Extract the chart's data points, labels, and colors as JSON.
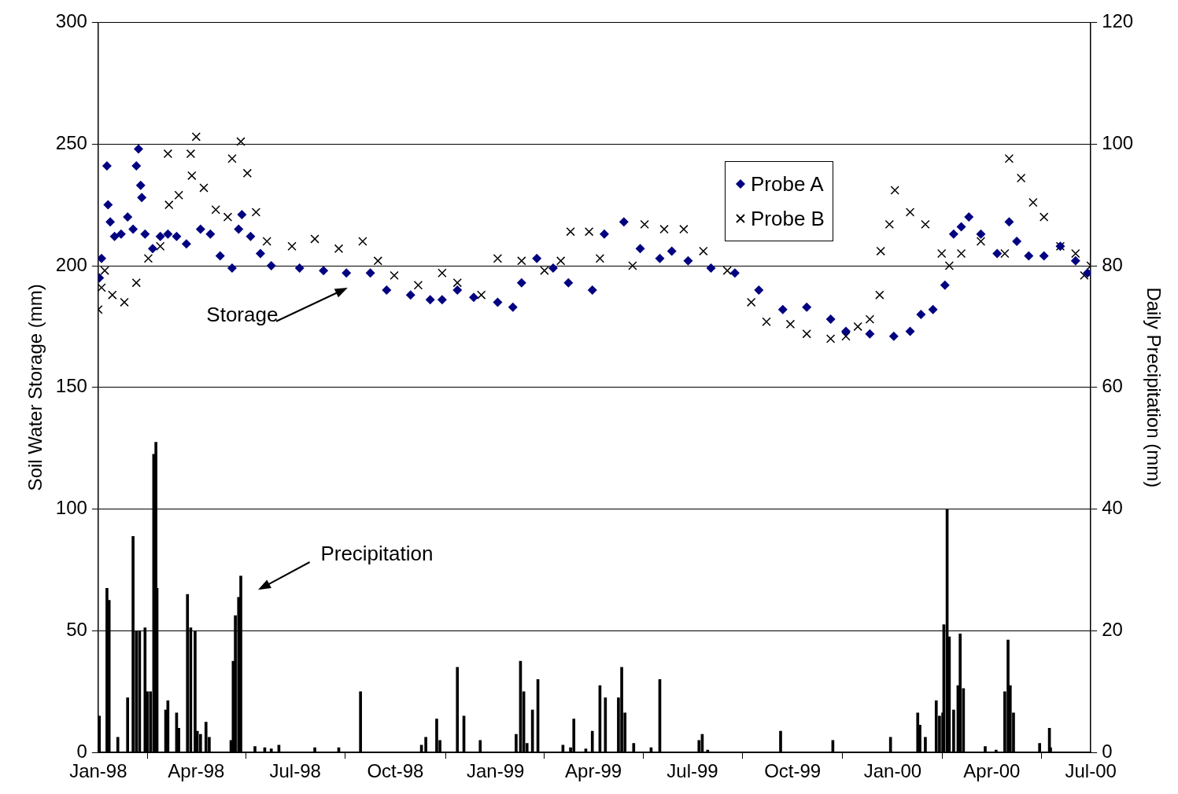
{
  "chart_data": {
    "type": "scatter",
    "xlabel": null,
    "ylabel": "Soil Water Storage (mm)",
    "y2label": "Daily Precipitation (mm)",
    "xlim": [
      "1998-01-01",
      "2000-07-01"
    ],
    "xticks": [
      {
        "value": "1998-01-01",
        "label": "Jan-98"
      },
      {
        "value": "1998-04-01",
        "label": "Apr-98"
      },
      {
        "value": "1998-07-01",
        "label": "Jul-98"
      },
      {
        "value": "1998-10-01",
        "label": "Oct-98"
      },
      {
        "value": "1999-01-01",
        "label": "Jan-99"
      },
      {
        "value": "1999-04-01",
        "label": "Apr-99"
      },
      {
        "value": "1999-07-01",
        "label": "Jul-99"
      },
      {
        "value": "1999-10-01",
        "label": "Oct-99"
      },
      {
        "value": "2000-01-01",
        "label": "Jan-00"
      },
      {
        "value": "2000-04-01",
        "label": "Apr-00"
      },
      {
        "value": "2000-07-01",
        "label": "Jul-00"
      }
    ],
    "ylim": [
      0,
      300
    ],
    "yticks": [
      0,
      50,
      100,
      150,
      200,
      250,
      300
    ],
    "y2lim": [
      0,
      120
    ],
    "y2ticks": [
      0,
      20,
      40,
      60,
      80,
      100,
      120
    ],
    "grid": "y",
    "legend": "top right",
    "annotations": [
      "Storage",
      "Precipitation"
    ],
    "series": [
      {
        "name": "Probe A",
        "marker": "diamond",
        "color": "#000080",
        "x": [
          "1998-01-02",
          "1998-01-04",
          "1998-01-09",
          "1998-01-10",
          "1998-01-12",
          "1998-01-16",
          "1998-01-22",
          "1998-01-28",
          "1998-02-02",
          "1998-02-05",
          "1998-02-07",
          "1998-02-09",
          "1998-02-10",
          "1998-02-13",
          "1998-02-20",
          "1998-02-27",
          "1998-03-06",
          "1998-03-14",
          "1998-03-23",
          "1998-04-05",
          "1998-04-14",
          "1998-04-23",
          "1998-05-04",
          "1998-05-10",
          "1998-05-13",
          "1998-05-21",
          "1998-05-30",
          "1998-06-09",
          "1998-07-05",
          "1998-07-27",
          "1998-08-17",
          "1998-09-08",
          "1998-09-23",
          "1998-10-15",
          "1998-11-02",
          "1998-11-13",
          "1998-11-27",
          "1998-12-12",
          "1999-01-03",
          "1999-01-17",
          "1999-01-25",
          "1999-02-08",
          "1999-02-23",
          "1999-03-09",
          "1999-03-31",
          "1999-04-11",
          "1999-04-29",
          "1999-05-14",
          "1999-06-01",
          "1999-06-12",
          "1999-06-27",
          "1999-07-18",
          "1999-08-09",
          "1999-08-31",
          "1999-09-22",
          "1999-10-14",
          "1999-11-05",
          "1999-11-19",
          "1999-12-11",
          "2000-01-02",
          "2000-01-17",
          "2000-01-27",
          "2000-02-07",
          "2000-02-18",
          "2000-02-26",
          "2000-03-04",
          "2000-03-11",
          "2000-03-22",
          "2000-04-06",
          "2000-04-17",
          "2000-04-24",
          "2000-05-05",
          "2000-05-19",
          "2000-06-03",
          "2000-06-17",
          "2000-06-28"
        ],
        "values": [
          195,
          203,
          241,
          225,
          218,
          212,
          213,
          220,
          215,
          241,
          248,
          233,
          228,
          213,
          207,
          212,
          213,
          212,
          209,
          215,
          213,
          204,
          199,
          215,
          221,
          212,
          205,
          200,
          199,
          198,
          197,
          197,
          190,
          188,
          186,
          186,
          190,
          187,
          185,
          183,
          193,
          203,
          199,
          193,
          190,
          213,
          218,
          207,
          203,
          206,
          202,
          199,
          197,
          190,
          182,
          183,
          178,
          173,
          172,
          171,
          173,
          180,
          182,
          192,
          213,
          216,
          220,
          213,
          205,
          218,
          210,
          204,
          204,
          208,
          202,
          197
        ]
      },
      {
        "name": "Probe B",
        "marker": "cross",
        "color": "#000000",
        "x": [
          "1998-01-01",
          "1998-01-04",
          "1998-01-07",
          "1998-01-14",
          "1998-01-25",
          "1998-02-05",
          "1998-02-16",
          "1998-02-27",
          "1998-03-06",
          "1998-03-07",
          "1998-03-16",
          "1998-03-27",
          "1998-03-28",
          "1998-04-01",
          "1998-04-08",
          "1998-04-19",
          "1998-04-30",
          "1998-05-04",
          "1998-05-12",
          "1998-05-18",
          "1998-05-26",
          "1998-06-05",
          "1998-06-28",
          "1998-07-19",
          "1998-08-10",
          "1998-09-01",
          "1998-09-15",
          "1998-09-30",
          "1998-10-22",
          "1998-11-13",
          "1998-11-27",
          "1998-12-19",
          "1999-01-03",
          "1999-01-25",
          "1999-02-15",
          "1999-03-02",
          "1999-03-11",
          "1999-03-28",
          "1999-04-07",
          "1999-05-07",
          "1999-05-18",
          "1999-06-05",
          "1999-06-23",
          "1999-07-11",
          "1999-08-02",
          "1999-08-24",
          "1999-09-07",
          "1999-09-29",
          "1999-10-14",
          "1999-11-05",
          "1999-11-19",
          "1999-11-30",
          "1999-12-11",
          "1999-12-20",
          "1999-12-21",
          "1999-12-29",
          "2000-01-03",
          "2000-01-17",
          "2000-01-31",
          "2000-02-15",
          "2000-02-22",
          "2000-03-04",
          "2000-03-22",
          "2000-04-13",
          "2000-04-17",
          "2000-04-28",
          "2000-05-09",
          "2000-05-19",
          "2000-06-03",
          "2000-06-17",
          "2000-06-25",
          "2000-07-01"
        ],
        "values": [
          182,
          191,
          198,
          188,
          185,
          193,
          203,
          208,
          246,
          225,
          229,
          246,
          237,
          253,
          232,
          223,
          220,
          244,
          251,
          238,
          222,
          210,
          208,
          211,
          207,
          210,
          202,
          196,
          192,
          197,
          193,
          188,
          203,
          202,
          198,
          202,
          214,
          214,
          203,
          200,
          217,
          215,
          215,
          206,
          198,
          185,
          177,
          176,
          172,
          170,
          171,
          175,
          178,
          188,
          206,
          217,
          231,
          222,
          217,
          205,
          200,
          205,
          210,
          205,
          244,
          236,
          226,
          220,
          208,
          205,
          196,
          200
        ]
      },
      {
        "type": "bar",
        "axis": "y2",
        "color": "#000000",
        "x": [
          "1998-01-02",
          "1998-01-09",
          "1998-01-11",
          "1998-01-19",
          "1998-01-28",
          "1998-02-02",
          "1998-02-05",
          "1998-02-08",
          "1998-02-13",
          "1998-02-15",
          "1998-02-18",
          "1998-02-21",
          "1998-02-23",
          "1998-02-24",
          "1998-03-04",
          "1998-03-06",
          "1998-03-14",
          "1998-03-16",
          "1998-03-24",
          "1998-03-27",
          "1998-03-31",
          "1998-04-02",
          "1998-04-05",
          "1998-04-10",
          "1998-04-13",
          "1998-05-03",
          "1998-05-05",
          "1998-05-07",
          "1998-05-10",
          "1998-05-12",
          "1998-05-25",
          "1998-06-03",
          "1998-06-09",
          "1998-06-16",
          "1998-07-19",
          "1998-08-10",
          "1998-08-30",
          "1998-10-25",
          "1998-10-29",
          "1998-11-08",
          "1998-11-11",
          "1998-11-27",
          "1998-12-03",
          "1998-12-18",
          "1999-01-20",
          "1999-01-24",
          "1999-01-27",
          "1999-01-30",
          "1999-02-04",
          "1999-02-09",
          "1999-03-04",
          "1999-03-11",
          "1999-03-14",
          "1999-03-25",
          "1999-03-31",
          "1999-04-07",
          "1999-04-12",
          "1999-04-24",
          "1999-04-27",
          "1999-04-30",
          "1999-05-08",
          "1999-05-24",
          "1999-06-01",
          "1999-07-07",
          "1999-07-10",
          "1999-07-15",
          "1999-09-20",
          "1999-11-07",
          "1999-12-30",
          "2000-01-24",
          "2000-01-26",
          "2000-01-31",
          "2000-02-10",
          "2000-02-13",
          "2000-02-16",
          "2000-02-17",
          "2000-02-20",
          "2000-02-22",
          "2000-02-26",
          "2000-03-01",
          "2000-03-03",
          "2000-03-06",
          "2000-03-26",
          "2000-04-05",
          "2000-04-13",
          "2000-04-16",
          "2000-04-18",
          "2000-04-21",
          "2000-05-15",
          "2000-05-24",
          "2000-05-25"
        ],
        "values": [
          6,
          27,
          25,
          2.5,
          9,
          35.5,
          20,
          20,
          20.5,
          10,
          10,
          49,
          51,
          27,
          7,
          8.5,
          6.5,
          4,
          26,
          20.5,
          20,
          3.5,
          3,
          5,
          2.5,
          2,
          15,
          22.5,
          25.5,
          29,
          1,
          0.8,
          0.6,
          1.2,
          0.8,
          0.8,
          10,
          1.2,
          2.5,
          5.5,
          2,
          14,
          6,
          2,
          3,
          15,
          10,
          1.5,
          7,
          12,
          1.2,
          0.8,
          5.5,
          0.6,
          3.5,
          11,
          9,
          9,
          14,
          6.5,
          1.5,
          0.8,
          12,
          2,
          3,
          0.4,
          3.5,
          2,
          2.5,
          6.5,
          4.5,
          2.5,
          8.5,
          6,
          6.5,
          21,
          40,
          19,
          7,
          11,
          19.5,
          10.5,
          1,
          0.4,
          10,
          18.5,
          11,
          6.5,
          1.5,
          4,
          0.8
        ]
      }
    ]
  }
}
